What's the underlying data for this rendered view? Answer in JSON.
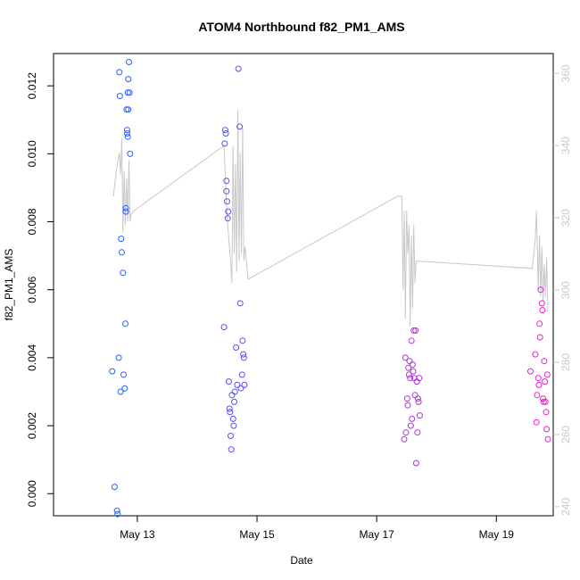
{
  "chart_data": {
    "type": "scatter",
    "title": "ATOM4 Northbound f82_PM1_AMS",
    "xlabel": "Date",
    "ylabel": "f82_PM1_AMS",
    "x_unit": "days since May 12 00:00",
    "xlim": [
      11.6,
      19.95
    ],
    "ylim": [
      -0.00065,
      0.01295
    ],
    "x_ticks": [
      {
        "value": 13,
        "label": "May 13"
      },
      {
        "value": 15,
        "label": "May 15"
      },
      {
        "value": 17,
        "label": "May 17"
      },
      {
        "value": 19,
        "label": "May 19"
      }
    ],
    "y_ticks": [
      {
        "value": 0,
        "label": "0.000"
      },
      {
        "value": 0.002,
        "label": "0.002"
      },
      {
        "value": 0.004,
        "label": "0.004"
      },
      {
        "value": 0.006,
        "label": "0.006"
      },
      {
        "value": 0.008,
        "label": "0.008"
      },
      {
        "value": 0.01,
        "label": "0.010"
      },
      {
        "value": 0.012,
        "label": "0.012"
      }
    ],
    "right_axis": {
      "ylim": [
        237.5,
        365.5
      ],
      "color": "#c8c8c8",
      "ticks": [
        {
          "value": 240,
          "label": "240"
        },
        {
          "value": 260,
          "label": "260"
        },
        {
          "value": 280,
          "label": "280"
        },
        {
          "value": 300,
          "label": "300"
        },
        {
          "value": 320,
          "label": "320"
        },
        {
          "value": 340,
          "label": "340"
        },
        {
          "value": 360,
          "label": "360"
        }
      ]
    },
    "grid": false,
    "color_gradient": {
      "start": "#1e64ff",
      "end": "#ee1dd0",
      "encodes": "time"
    },
    "scatter_series": [
      {
        "name": "f82_PM1_AMS",
        "x": [
          12.58,
          12.62,
          12.66,
          12.67,
          12.69,
          12.7,
          12.71,
          12.72,
          12.73,
          12.74,
          12.76,
          12.77,
          12.79,
          12.8,
          12.81,
          12.81,
          12.82,
          12.83,
          12.83,
          12.84,
          12.84,
          12.85,
          12.85,
          12.86,
          12.87,
          12.88,
          14.45,
          14.46,
          14.47,
          14.48,
          14.49,
          14.49,
          14.5,
          14.51,
          14.52,
          14.53,
          14.54,
          14.55,
          14.56,
          14.57,
          14.58,
          14.6,
          14.61,
          14.62,
          14.63,
          14.65,
          14.67,
          14.69,
          14.71,
          14.72,
          14.73,
          14.75,
          14.76,
          14.77,
          14.78,
          14.79,
          17.46,
          17.48,
          17.49,
          17.51,
          17.52,
          17.53,
          17.54,
          17.55,
          17.56,
          17.57,
          17.58,
          17.59,
          17.6,
          17.61,
          17.62,
          17.63,
          17.64,
          17.65,
          17.66,
          17.67,
          17.68,
          17.69,
          17.7,
          17.71,
          17.72,
          19.57,
          19.65,
          19.67,
          19.68,
          19.7,
          19.71,
          19.72,
          19.73,
          19.74,
          19.76,
          19.77,
          19.78,
          19.79,
          19.8,
          19.81,
          19.82,
          19.83,
          19.84,
          19.85,
          19.86
        ],
        "y": [
          0.0036,
          0.0002,
          -0.0005,
          -0.0006,
          0.004,
          0.0124,
          0.0117,
          0.003,
          0.0075,
          0.0071,
          0.0065,
          0.0035,
          0.0031,
          0.005,
          0.0084,
          0.0083,
          0.0113,
          0.0107,
          0.0106,
          0.0118,
          0.0105,
          0.0122,
          0.0113,
          0.0127,
          0.0118,
          0.01,
          0.0049,
          0.0103,
          0.0107,
          0.0106,
          0.0092,
          0.0089,
          0.0086,
          0.0081,
          0.0083,
          0.0033,
          0.0025,
          0.0024,
          0.0017,
          0.0013,
          0.0029,
          0.0022,
          0.002,
          0.0027,
          0.003,
          0.0043,
          0.0032,
          0.0125,
          0.0108,
          0.0056,
          0.0031,
          0.0035,
          0.0045,
          0.0041,
          0.004,
          0.0032,
          0.0016,
          0.004,
          0.0018,
          0.0028,
          0.0026,
          0.0037,
          0.0035,
          0.0039,
          0.0034,
          0.002,
          0.0045,
          0.0022,
          0.0038,
          0.0036,
          0.0048,
          0.0034,
          0.0029,
          0.0048,
          0.0009,
          0.0033,
          0.0018,
          0.0028,
          0.0027,
          0.0034,
          0.0023,
          0.0036,
          0.0041,
          0.0021,
          0.0029,
          0.0034,
          0.0032,
          0.005,
          0.0046,
          0.006,
          0.0056,
          0.0054,
          0.0028,
          0.0027,
          0.0039,
          0.0033,
          0.0027,
          0.0024,
          0.0019,
          0.0035,
          0.0016
        ]
      }
    ],
    "line_series": [
      {
        "name": "secondary (right axis)",
        "color": "#c8c8c8",
        "x": [
          12.6,
          12.65,
          12.7,
          12.72,
          12.74,
          12.76,
          12.78,
          12.8,
          12.82,
          12.84,
          12.86,
          12.88,
          12.9,
          12.95,
          14.45,
          14.5,
          14.55,
          14.58,
          14.6,
          14.62,
          14.64,
          14.66,
          14.68,
          14.7,
          14.72,
          14.74,
          14.76,
          14.78,
          14.8,
          14.85,
          17.35,
          17.42,
          17.44,
          17.46,
          17.48,
          17.5,
          17.52,
          17.54,
          17.56,
          17.58,
          17.6,
          17.62,
          17.64,
          17.66,
          17.7,
          19.6,
          19.65,
          19.67,
          19.7,
          19.72,
          19.74,
          19.76,
          19.78,
          19.8,
          19.82,
          19.84,
          19.86
        ],
        "y": [
          326,
          333,
          338,
          332,
          342,
          316,
          333,
          318,
          331,
          319,
          336,
          319,
          321,
          322,
          340,
          320,
          310,
          302,
          340,
          310,
          335,
          305,
          350,
          308,
          338,
          310,
          345,
          308,
          312,
          303,
          326,
          326,
          300,
          322,
          292,
          322,
          310,
          318,
          290,
          315,
          295,
          318,
          302,
          308,
          308,
          306,
          314,
          322,
          300,
          315,
          298,
          312,
          297,
          307,
          298,
          309,
          294
        ]
      }
    ]
  }
}
